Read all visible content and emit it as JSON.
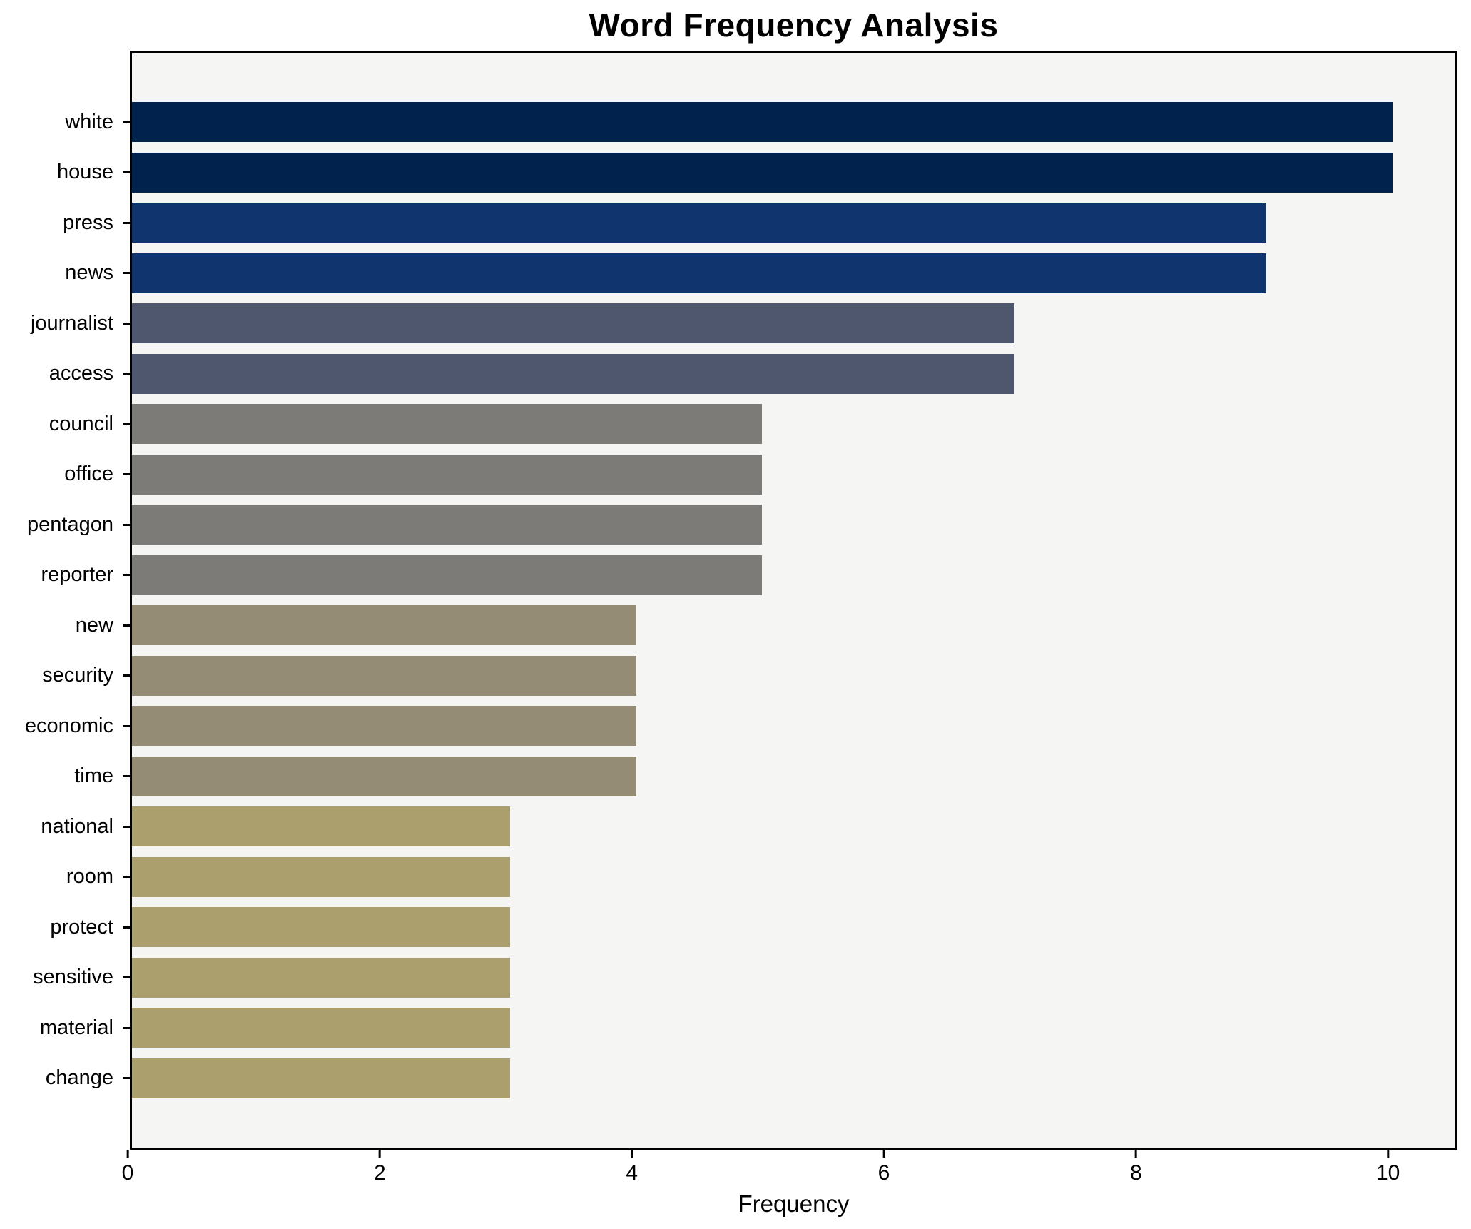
{
  "chart_data": {
    "type": "bar",
    "orientation": "horizontal",
    "title": "Word Frequency Analysis",
    "xlabel": "Frequency",
    "ylabel": "",
    "categories": [
      "white",
      "house",
      "press",
      "news",
      "journalist",
      "access",
      "council",
      "office",
      "pentagon",
      "reporter",
      "new",
      "security",
      "economic",
      "time",
      "national",
      "room",
      "protect",
      "sensitive",
      "material",
      "change"
    ],
    "values": [
      10,
      10,
      9,
      9,
      7,
      7,
      5,
      5,
      5,
      5,
      4,
      4,
      4,
      4,
      3,
      3,
      3,
      3,
      3,
      3
    ],
    "bar_colors": [
      "#01224d",
      "#01224d",
      "#10346e",
      "#10346e",
      "#4f576f",
      "#4f576f",
      "#7c7b78",
      "#7c7b78",
      "#7c7b78",
      "#7c7b78",
      "#948c75",
      "#948c75",
      "#948c75",
      "#948c75",
      "#ac9f6e",
      "#ac9f6e",
      "#ac9f6e",
      "#ac9f6e",
      "#ac9f6e",
      "#ac9f6e"
    ],
    "xlim": [
      0,
      10.5
    ],
    "xticks": [
      0,
      2,
      4,
      6,
      8,
      10
    ],
    "grid": false,
    "legend_position": "none",
    "colors": {
      "figure_background": "#ffffff",
      "plot_background": "#f5f5f4",
      "axis": "#000000",
      "text": "#000000"
    }
  }
}
